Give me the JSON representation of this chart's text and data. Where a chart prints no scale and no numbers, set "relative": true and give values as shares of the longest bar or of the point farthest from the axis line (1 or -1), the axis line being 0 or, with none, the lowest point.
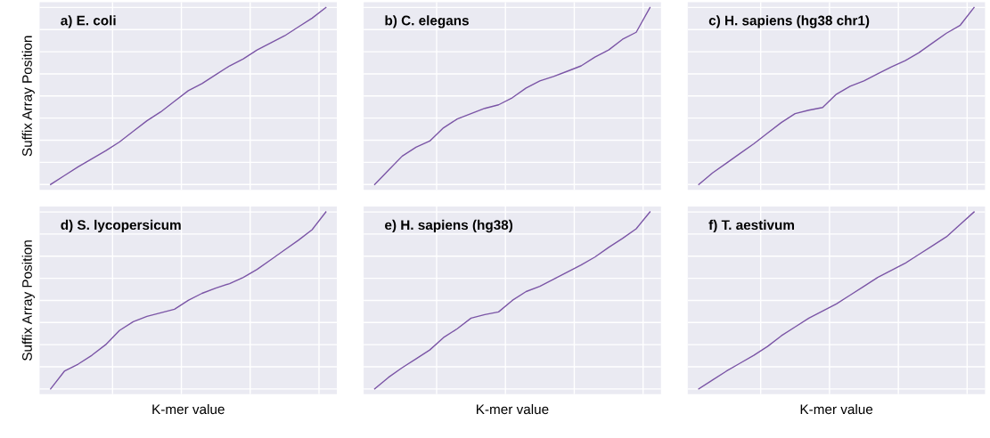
{
  "chart_data": [
    {
      "type": "line",
      "title": "a) E. coli",
      "relative": true,
      "grid": true,
      "tick_labels": false,
      "ylabel": "Suffix Array Position",
      "categories": [
        null,
        null,
        null,
        null,
        null,
        null,
        null,
        null,
        null,
        null,
        null,
        null,
        null,
        null,
        null,
        null,
        null,
        null,
        null,
        null,
        null
      ],
      "series": [
        {
          "color": "#7b55a6",
          "values": [
            0,
            0.05,
            0.1,
            0.145,
            0.19,
            0.24,
            0.3,
            0.36,
            0.41,
            0.47,
            0.53,
            0.57,
            0.62,
            0.67,
            0.71,
            0.76,
            0.8,
            0.84,
            0.89,
            0.94,
            1
          ]
        }
      ]
    },
    {
      "type": "line",
      "title": "b) C. elegans",
      "relative": true,
      "grid": true,
      "tick_labels": false,
      "categories": [
        null,
        null,
        null,
        null,
        null,
        null,
        null,
        null,
        null,
        null,
        null,
        null,
        null,
        null,
        null,
        null,
        null,
        null,
        null,
        null,
        null
      ],
      "series": [
        {
          "color": "#7b55a6",
          "values": [
            0,
            0.08,
            0.16,
            0.21,
            0.245,
            0.32,
            0.37,
            0.4,
            0.43,
            0.45,
            0.49,
            0.545,
            0.585,
            0.61,
            0.64,
            0.67,
            0.72,
            0.76,
            0.82,
            0.86,
            1
          ]
        }
      ]
    },
    {
      "type": "line",
      "title": "c) H. sapiens (hg38 chr1)",
      "relative": true,
      "grid": true,
      "tick_labels": false,
      "categories": [
        null,
        null,
        null,
        null,
        null,
        null,
        null,
        null,
        null,
        null,
        null,
        null,
        null,
        null,
        null,
        null,
        null,
        null,
        null,
        null,
        null
      ],
      "series": [
        {
          "color": "#7b55a6",
          "values": [
            0,
            0.065,
            0.12,
            0.175,
            0.23,
            0.29,
            0.35,
            0.4,
            0.42,
            0.435,
            0.51,
            0.555,
            0.585,
            0.625,
            0.665,
            0.7,
            0.745,
            0.8,
            0.855,
            0.9,
            1
          ]
        }
      ]
    },
    {
      "type": "line",
      "title": "d) S. lycopersicum",
      "relative": true,
      "grid": true,
      "tick_labels": false,
      "xlabel": "K-mer value",
      "ylabel": "Suffix Array Position",
      "categories": [
        null,
        null,
        null,
        null,
        null,
        null,
        null,
        null,
        null,
        null,
        null,
        null,
        null,
        null,
        null,
        null,
        null,
        null,
        null,
        null,
        null
      ],
      "series": [
        {
          "color": "#7b55a6",
          "values": [
            0,
            0.1,
            0.14,
            0.19,
            0.25,
            0.33,
            0.38,
            0.41,
            0.43,
            0.45,
            0.5,
            0.54,
            0.57,
            0.595,
            0.63,
            0.675,
            0.73,
            0.785,
            0.84,
            0.9,
            1
          ]
        }
      ]
    },
    {
      "type": "line",
      "title": "e) H. sapiens (hg38)",
      "relative": true,
      "grid": true,
      "tick_labels": false,
      "xlabel": "K-mer value",
      "categories": [
        null,
        null,
        null,
        null,
        null,
        null,
        null,
        null,
        null,
        null,
        null,
        null,
        null,
        null,
        null,
        null,
        null,
        null,
        null,
        null,
        null
      ],
      "series": [
        {
          "color": "#7b55a6",
          "values": [
            0,
            0.065,
            0.12,
            0.17,
            0.22,
            0.29,
            0.34,
            0.4,
            0.42,
            0.435,
            0.5,
            0.55,
            0.58,
            0.62,
            0.66,
            0.7,
            0.745,
            0.8,
            0.85,
            0.905,
            1
          ]
        }
      ]
    },
    {
      "type": "line",
      "title": "f) T. aestivum",
      "relative": true,
      "grid": true,
      "tick_labels": false,
      "xlabel": "K-mer value",
      "categories": [
        null,
        null,
        null,
        null,
        null,
        null,
        null,
        null,
        null,
        null,
        null,
        null,
        null,
        null,
        null,
        null,
        null,
        null,
        null,
        null,
        null
      ],
      "series": [
        {
          "color": "#7b55a6",
          "values": [
            0,
            0.05,
            0.1,
            0.145,
            0.19,
            0.24,
            0.3,
            0.35,
            0.4,
            0.44,
            0.48,
            0.53,
            0.58,
            0.63,
            0.67,
            0.71,
            0.76,
            0.81,
            0.86,
            0.93,
            1
          ]
        }
      ]
    }
  ]
}
